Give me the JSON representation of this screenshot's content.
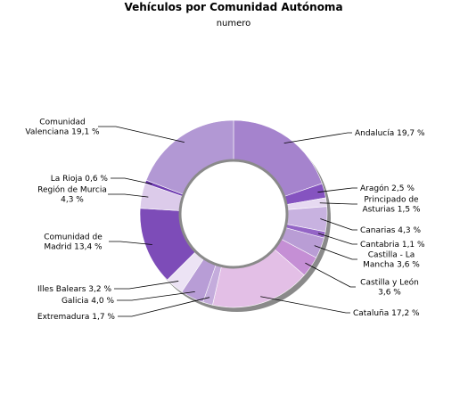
{
  "chart_data": {
    "type": "pie",
    "variant": "donut",
    "title": "Vehículos por Comunidad Autónoma",
    "subtitle": "numero",
    "legend": "none",
    "slices": [
      {
        "label": [
          "Andalucía 19,7 %"
        ],
        "value": 19.7,
        "color": "#a583cd"
      },
      {
        "label": [
          "Aragón 2,5 %"
        ],
        "value": 2.5,
        "color": "#8553c0"
      },
      {
        "label": [
          "Principado de",
          "Asturias 1,5 %"
        ],
        "value": 1.5,
        "color": "#e6d9f1"
      },
      {
        "label": [
          "Canarias 4,3 %"
        ],
        "value": 4.3,
        "color": "#c8b2e0"
      },
      {
        "label": [
          "Cantabria 1,1 %"
        ],
        "value": 1.1,
        "color": "#9465c6"
      },
      {
        "label": [
          "Castilla - La",
          "Mancha 3,6 %"
        ],
        "value": 3.6,
        "color": "#b99dd5"
      },
      {
        "label": [
          "Castilla y León",
          "3,6 %"
        ],
        "value": 3.6,
        "color": "#c58fd5"
      },
      {
        "label": [
          "Cataluña 17,2 %"
        ],
        "value": 17.2,
        "color": "#e3bfe6"
      },
      {
        "label": [
          "Extremadura 1,7 %"
        ],
        "value": 1.7,
        "color": "#c4acdc"
      },
      {
        "label": [
          "Galicia 4,0 %"
        ],
        "value": 4.0,
        "color": "#b89dd6"
      },
      {
        "label": [
          "Illes Balears 3,2 %"
        ],
        "value": 3.2,
        "color": "#ece3f4"
      },
      {
        "label": [
          "Comunidad de",
          "Madrid 13,4 %"
        ],
        "value": 13.4,
        "color": "#7d4cb8"
      },
      {
        "label": [
          "Región de Murcia",
          "4,3 %"
        ],
        "value": 4.3,
        "color": "#dccbea"
      },
      {
        "label": [
          "La Rioja 0,6 %"
        ],
        "value": 0.6,
        "color": "#6f3cb0"
      },
      {
        "label": [
          "Comunidad",
          "Valenciana 19,1 %"
        ],
        "value": 19.1,
        "color": "#b298d4"
      }
    ]
  }
}
